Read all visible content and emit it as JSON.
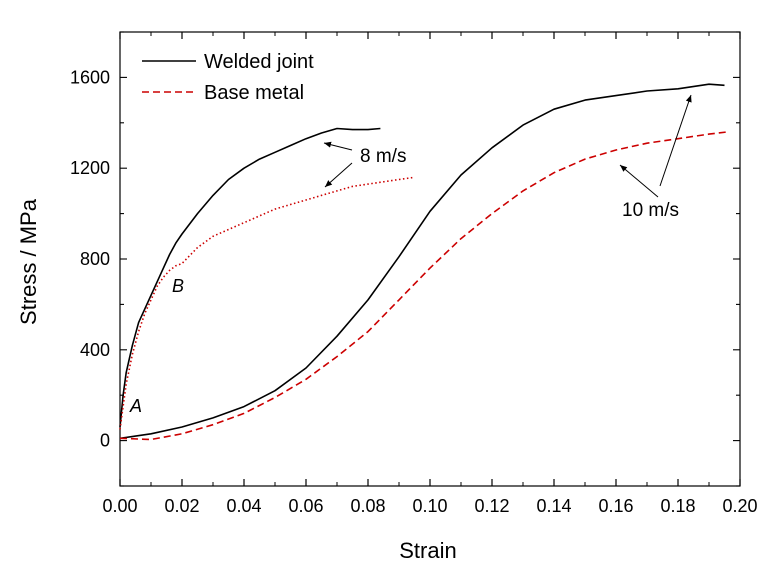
{
  "chart_data": {
    "type": "line",
    "xlabel": "Strain",
    "ylabel": "Stress / MPa",
    "xlim": [
      0,
      0.2
    ],
    "ylim": [
      -200,
      1800
    ],
    "xticks": [
      "0.00",
      "0.02",
      "0.04",
      "0.06",
      "0.08",
      "0.10",
      "0.12",
      "0.14",
      "0.16",
      "0.18",
      "0.20"
    ],
    "yticks": [
      "0",
      "400",
      "800",
      "1200",
      "1600"
    ],
    "legend": {
      "placement": "top-left",
      "entries": [
        "Welded joint",
        "Base metal"
      ]
    },
    "grid": false,
    "colors": {
      "welded": "#000000",
      "base": "#cc0000"
    },
    "series": [
      {
        "name": "Welded joint",
        "case": "8 m/s",
        "style": "solid",
        "color": "#000000",
        "x": [
          0,
          0.001,
          0.002,
          0.004,
          0.006,
          0.008,
          0.01,
          0.012,
          0.014,
          0.016,
          0.018,
          0.02,
          0.025,
          0.03,
          0.035,
          0.04,
          0.045,
          0.05,
          0.055,
          0.06,
          0.065,
          0.07,
          0.075,
          0.08,
          0.084
        ],
        "y": [
          60,
          200,
          300,
          420,
          520,
          580,
          640,
          700,
          760,
          820,
          870,
          910,
          1000,
          1080,
          1150,
          1200,
          1240,
          1270,
          1300,
          1330,
          1355,
          1375,
          1370,
          1370,
          1375
        ]
      },
      {
        "name": "Base metal",
        "case": "8 m/s",
        "style": "dotted",
        "color": "#cc0000",
        "x": [
          0,
          0.001,
          0.002,
          0.004,
          0.006,
          0.008,
          0.01,
          0.012,
          0.014,
          0.016,
          0.018,
          0.02,
          0.025,
          0.03,
          0.035,
          0.04,
          0.045,
          0.05,
          0.055,
          0.06,
          0.065,
          0.07,
          0.075,
          0.08,
          0.085,
          0.09,
          0.095
        ],
        "y": [
          50,
          150,
          250,
          380,
          480,
          560,
          620,
          680,
          720,
          750,
          770,
          780,
          850,
          900,
          930,
          960,
          990,
          1020,
          1040,
          1060,
          1080,
          1100,
          1120,
          1130,
          1140,
          1150,
          1160
        ]
      },
      {
        "name": "Welded joint",
        "case": "10 m/s",
        "style": "solid",
        "color": "#000000",
        "x": [
          0,
          0.005,
          0.01,
          0.02,
          0.03,
          0.04,
          0.05,
          0.06,
          0.07,
          0.08,
          0.09,
          0.1,
          0.11,
          0.12,
          0.13,
          0.14,
          0.15,
          0.16,
          0.17,
          0.18,
          0.19,
          0.195
        ],
        "y": [
          10,
          20,
          30,
          60,
          100,
          150,
          220,
          320,
          460,
          620,
          810,
          1010,
          1170,
          1290,
          1390,
          1460,
          1500,
          1520,
          1540,
          1550,
          1570,
          1565
        ]
      },
      {
        "name": "Base metal",
        "case": "10 m/s",
        "style": "dashed",
        "color": "#cc0000",
        "x": [
          0,
          0.01,
          0.02,
          0.03,
          0.04,
          0.05,
          0.06,
          0.07,
          0.08,
          0.09,
          0.1,
          0.11,
          0.12,
          0.13,
          0.14,
          0.15,
          0.16,
          0.17,
          0.18,
          0.19,
          0.196
        ],
        "y": [
          10,
          5,
          30,
          70,
          120,
          190,
          270,
          370,
          480,
          620,
          760,
          890,
          1000,
          1100,
          1180,
          1240,
          1280,
          1310,
          1330,
          1350,
          1360
        ]
      }
    ],
    "annotations": [
      {
        "text": "8 m/s"
      },
      {
        "text": "10 m/s"
      },
      {
        "text": "A"
      },
      {
        "text": "B"
      }
    ]
  }
}
